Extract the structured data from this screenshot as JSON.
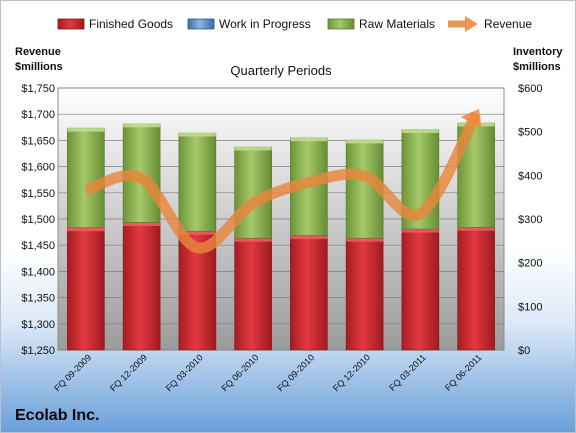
{
  "chart_data": {
    "type": "bar",
    "title": "Quarterly Periods",
    "company": "Ecolab Inc.",
    "categories": [
      "FQ 09-2009",
      "FQ 12-2009",
      "FQ 03-2010",
      "FQ 06-2010",
      "FQ 09-2010",
      "FQ 12-2010",
      "FQ 03-2011",
      "FQ 06-2011"
    ],
    "stacked": true,
    "series": [
      {
        "name": "Finished Goods",
        "axis": "right",
        "color": "#c0262c",
        "values": [
          280,
          292,
          272,
          256,
          262,
          256,
          277,
          281
        ]
      },
      {
        "name": "Work in Progress",
        "axis": "right",
        "color": "#4f81bd",
        "values": [
          0,
          0,
          0,
          0,
          0,
          0,
          0,
          0
        ]
      },
      {
        "name": "Raw Materials",
        "axis": "right",
        "color": "#77a83c",
        "values": [
          228,
          226,
          225,
          209,
          224,
          225,
          228,
          239
        ]
      },
      {
        "name": "Revenue",
        "axis": "left",
        "type": "line",
        "color": "#e8863a",
        "values": [
          1555,
          1578,
          1445,
          1530,
          1570,
          1582,
          1510,
          1700
        ]
      }
    ],
    "left_axis": {
      "label_line1": "Revenue",
      "label_line2": "$millions",
      "ylim": [
        1250,
        1750
      ],
      "ticks": [
        "$1,250",
        "$1,300",
        "$1,350",
        "$1,400",
        "$1,450",
        "$1,500",
        "$1,550",
        "$1,600",
        "$1,650",
        "$1,700",
        "$1,750"
      ]
    },
    "right_axis": {
      "label_line1": "Inventory",
      "label_line2": "$millions",
      "ylim": [
        0,
        600
      ],
      "ticks": [
        "$0",
        "$100",
        "$200",
        "$300",
        "$400",
        "$500",
        "$600"
      ]
    },
    "legend_position": "top",
    "grid": true
  }
}
